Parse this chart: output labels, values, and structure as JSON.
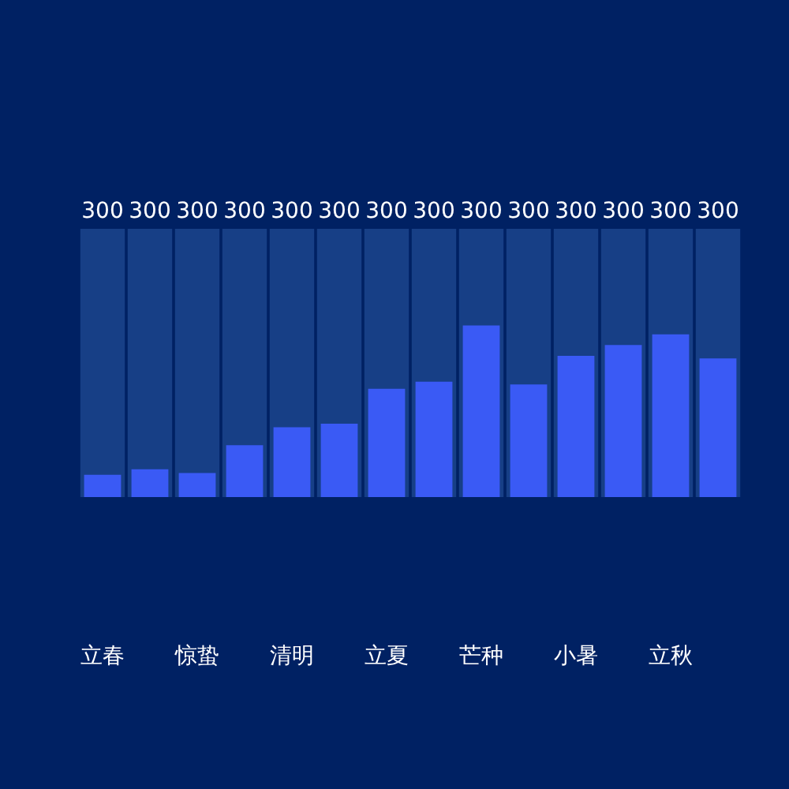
{
  "chart_data": {
    "type": "bar",
    "categories": [
      "立春",
      null,
      "惊蛰",
      null,
      "清明",
      null,
      "立夏",
      null,
      "芒种",
      null,
      "小暑",
      null,
      "立秋",
      null
    ],
    "series": [
      {
        "color": "#173f86",
        "values": [
          300,
          300,
          300,
          300,
          300,
          300,
          300,
          300,
          300,
          300,
          300,
          300,
          300,
          300
        ],
        "value_labels": [
          "300",
          "300",
          "300",
          "300",
          "300",
          "300",
          "300",
          "300",
          "300",
          "300",
          "300",
          "300",
          "300",
          "300"
        ]
      },
      {
        "color": "#3a5af5",
        "values": [
          25,
          31,
          27,
          58,
          78,
          82,
          121,
          129,
          192,
          126,
          158,
          170,
          182,
          155
        ]
      }
    ],
    "ylim": [
      0,
      300
    ],
    "tick_labels": "x"
  }
}
